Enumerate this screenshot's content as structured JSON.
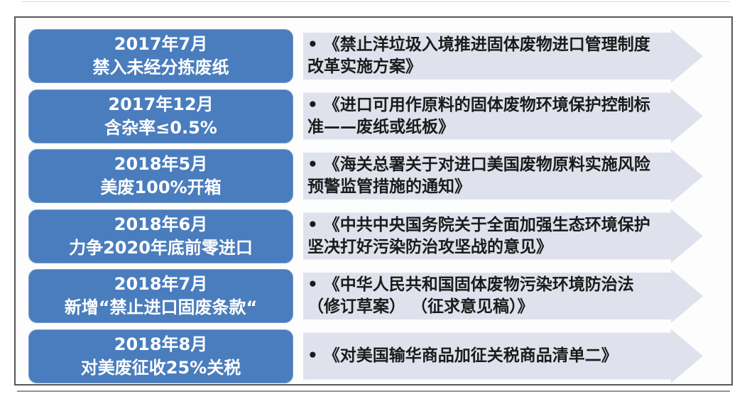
{
  "colors": {
    "milestone_box_blue": "#4a7dbd",
    "arrow_fill": "#dfe2ec",
    "frame_border": "#57585a",
    "milestone_text": "#ffffff",
    "policy_text": "#1b1b1b"
  },
  "timeline": {
    "bullet": "•",
    "rows": [
      {
        "date": "2017年7月",
        "action": "禁入未经分拣废纸",
        "policy": "《禁止洋垃圾入境推进固体废物进口管理制度改革实施方案》"
      },
      {
        "date": "2017年12月",
        "action": "含杂率≤0.5%",
        "policy": "《进口可用作原料的固体废物环境保护控制标准——废纸或纸板》"
      },
      {
        "date": "2018年5月",
        "action": "美废100%开箱",
        "policy": "《海关总署关于对进口美国废物原料实施风险预警监管措施的通知》"
      },
      {
        "date": "2018年6月",
        "action": "力争2020年底前零进口",
        "policy": "《中共中央国务院关于全面加强生态环境保护坚决打好污染防治攻坚战的意见》"
      },
      {
        "date": "2018年7月",
        "action": "新增“禁止进口固废条款“",
        "policy": "《中华人民共和国固体废物污染环境防治法（修订草案） （征求意见稿）》"
      },
      {
        "date": "2018年8月",
        "action": "对美废征收25%关税",
        "policy": "《对美国输华商品加征关税商品清单二》"
      }
    ]
  }
}
